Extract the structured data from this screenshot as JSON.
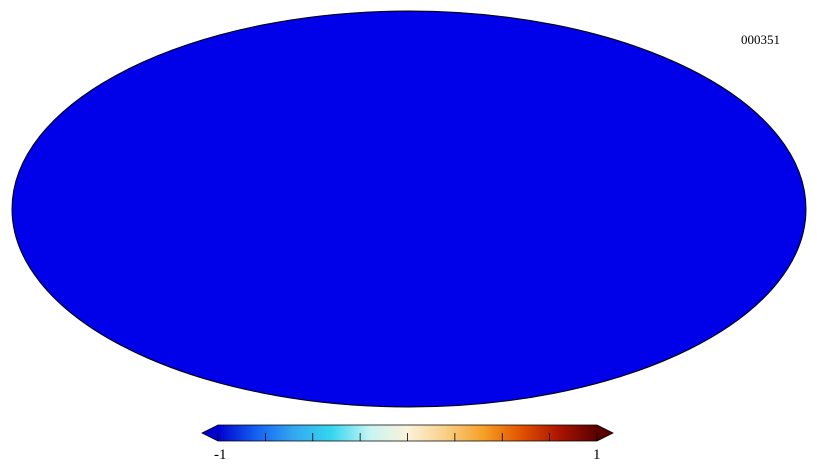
{
  "map": {
    "identifier": "000351",
    "projection": "mollweide",
    "colormap": [
      "#0000d0",
      "#1560f0",
      "#33a8f0",
      "#35d6ee",
      "#c6f4f4",
      "#fbf3da",
      "#f8d088",
      "#f6a025",
      "#e25200",
      "#aa1400",
      "#5a0000"
    ]
  },
  "colorbar": {
    "min_label": "-1",
    "max_label": "1",
    "tick_count": 9
  }
}
